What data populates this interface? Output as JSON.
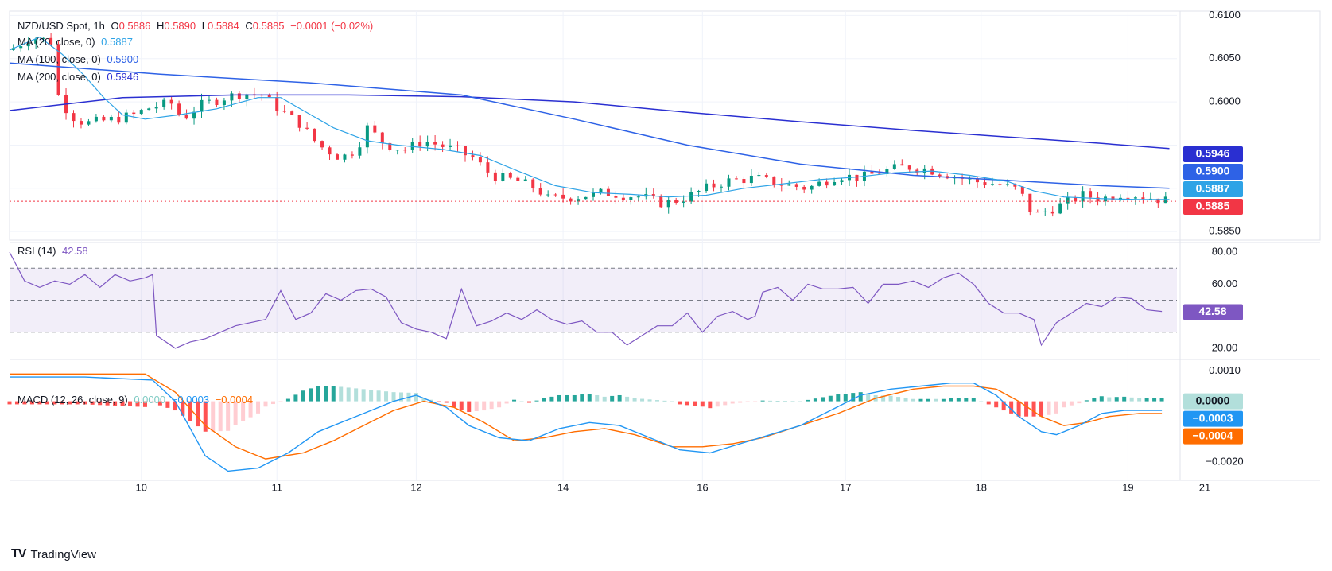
{
  "header": {
    "symbol": "NZD/USD Spot, 1h",
    "o_label": "O",
    "o_value": "0.5886",
    "h_label": "H",
    "h_value": "0.5890",
    "l_label": "L",
    "l_value": "0.5884",
    "c_label": "C",
    "c_value": "0.5885",
    "change": "−0.0001 (−0.02%)"
  },
  "indicators": {
    "ma20": {
      "label": "MA (20, close, 0)",
      "value": "0.5887",
      "color": "#2ea3e6"
    },
    "ma100": {
      "label": "MA (100, close, 0)",
      "value": "0.5900",
      "color": "#2e62e6"
    },
    "ma200": {
      "label": "MA (200, close, 0)",
      "value": "0.5946",
      "color": "#2a2fd1"
    },
    "rsi": {
      "label": "RSI (14)",
      "value": "42.58",
      "color": "#7e57c2"
    },
    "macd": {
      "label": "MACD (12, 26, close, 9)",
      "hist": "0.0000",
      "macd": "−0.0003",
      "signal": "−0.0004",
      "hist_color": "#26a69a",
      "macd_color": "#2196f3",
      "signal_color": "#ff6d00"
    }
  },
  "price_axis": [
    "0.6100",
    "0.6050",
    "0.6000",
    "0.5850"
  ],
  "rsi_axis": [
    "80.00",
    "60.00",
    "20.00"
  ],
  "macd_axis": [
    "0.0010",
    "−0.0020"
  ],
  "price_tags": [
    {
      "value": "0.5946",
      "bg": "#2a2fd1"
    },
    {
      "value": "0.5900",
      "bg": "#2e62e6"
    },
    {
      "value": "0.5887",
      "bg": "#2ea3e6"
    },
    {
      "value": "0.5885",
      "bg": "#f23645"
    }
  ],
  "rsi_tag": "42.58",
  "macd_tags": [
    {
      "value": "0.0000",
      "bg": "#b2dfdb",
      "fg": "#131722"
    },
    {
      "value": "−0.0003",
      "bg": "#2196f3",
      "fg": "#ffffff"
    },
    {
      "value": "−0.0004",
      "bg": "#ff6d00",
      "fg": "#ffffff"
    }
  ],
  "x_axis": [
    "10",
    "11",
    "12",
    "14",
    "16",
    "17",
    "18",
    "19",
    "21"
  ],
  "footer": {
    "brand": "TradingView"
  },
  "chart_data": {
    "type": "candlestick",
    "title": "NZD/USD Spot, 1h",
    "x_ticks": [
      "10",
      "11",
      "12",
      "14",
      "16",
      "17",
      "18",
      "19",
      "21"
    ],
    "ylim": [
      0.584,
      0.6105
    ],
    "series": [
      {
        "name": "MA (20, close, 0)",
        "last": 0.5887
      },
      {
        "name": "MA (100, close, 0)",
        "last": 0.59
      },
      {
        "name": "MA (200, close, 0)",
        "last": 0.5946
      }
    ],
    "close_path": [
      [
        0,
        0.606
      ],
      [
        6,
        0.6075
      ],
      [
        11,
        0.607
      ],
      [
        12,
        0.6015
      ],
      [
        16,
        0.5985
      ],
      [
        20,
        0.5975
      ],
      [
        28,
        0.598
      ],
      [
        33,
        0.5985
      ],
      [
        38,
        0.5995
      ],
      [
        43,
        0.5998
      ],
      [
        46,
        0.598
      ],
      [
        50,
        0.5995
      ],
      [
        57,
        0.6005
      ],
      [
        62,
        0.601
      ],
      [
        67,
        0.6008
      ],
      [
        72,
        0.599
      ],
      [
        77,
        0.5975
      ],
      [
        82,
        0.595
      ],
      [
        88,
        0.5935
      ],
      [
        92,
        0.5945
      ],
      [
        95,
        0.597
      ],
      [
        100,
        0.595
      ],
      [
        105,
        0.5945
      ],
      [
        110,
        0.5955
      ],
      [
        118,
        0.5945
      ],
      [
        123,
        0.5935
      ],
      [
        128,
        0.5915
      ],
      [
        135,
        0.5908
      ],
      [
        140,
        0.59
      ],
      [
        143,
        0.5888
      ],
      [
        150,
        0.589
      ],
      [
        158,
        0.5895
      ],
      [
        168,
        0.589
      ],
      [
        174,
        0.5882
      ],
      [
        180,
        0.589
      ],
      [
        185,
        0.59
      ],
      [
        190,
        0.5908
      ],
      [
        198,
        0.5912
      ],
      [
        205,
        0.5905
      ],
      [
        212,
        0.59
      ],
      [
        220,
        0.5915
      ],
      [
        226,
        0.5912
      ],
      [
        232,
        0.592
      ],
      [
        238,
        0.5925
      ],
      [
        244,
        0.5922
      ],
      [
        250,
        0.5915
      ],
      [
        256,
        0.5908
      ],
      [
        262,
        0.5905
      ],
      [
        268,
        0.5898
      ],
      [
        272,
        0.5868
      ],
      [
        276,
        0.5875
      ],
      [
        280,
        0.5882
      ],
      [
        285,
        0.5892
      ],
      [
        290,
        0.5888
      ],
      [
        296,
        0.5895
      ],
      [
        302,
        0.589
      ],
      [
        308,
        0.5885
      ]
    ],
    "ma20_path": [
      [
        0,
        0.606
      ],
      [
        8,
        0.6075
      ],
      [
        14,
        0.6055
      ],
      [
        20,
        0.603
      ],
      [
        25,
        0.6005
      ],
      [
        30,
        0.5985
      ],
      [
        36,
        0.598
      ],
      [
        45,
        0.5985
      ],
      [
        55,
        0.5992
      ],
      [
        66,
        0.6005
      ],
      [
        72,
        0.6005
      ],
      [
        78,
        0.599
      ],
      [
        86,
        0.597
      ],
      [
        95,
        0.5955
      ],
      [
        103,
        0.595
      ],
      [
        115,
        0.5945
      ],
      [
        125,
        0.5938
      ],
      [
        135,
        0.592
      ],
      [
        145,
        0.5903
      ],
      [
        155,
        0.5895
      ],
      [
        165,
        0.5893
      ],
      [
        175,
        0.589
      ],
      [
        185,
        0.5892
      ],
      [
        195,
        0.59
      ],
      [
        205,
        0.5905
      ],
      [
        215,
        0.591
      ],
      [
        225,
        0.5913
      ],
      [
        235,
        0.5918
      ],
      [
        245,
        0.592
      ],
      [
        255,
        0.5915
      ],
      [
        265,
        0.5908
      ],
      [
        272,
        0.5897
      ],
      [
        280,
        0.589
      ],
      [
        290,
        0.5888
      ],
      [
        300,
        0.5887
      ],
      [
        308,
        0.5887
      ]
    ],
    "ma100_path": [
      [
        0,
        0.6045
      ],
      [
        40,
        0.6032
      ],
      [
        80,
        0.6022
      ],
      [
        120,
        0.6008
      ],
      [
        150,
        0.598
      ],
      [
        180,
        0.595
      ],
      [
        210,
        0.5928
      ],
      [
        240,
        0.5915
      ],
      [
        270,
        0.5908
      ],
      [
        290,
        0.5903
      ],
      [
        308,
        0.59
      ]
    ],
    "ma200_path": [
      [
        0,
        0.599
      ],
      [
        30,
        0.6005
      ],
      [
        60,
        0.6008
      ],
      [
        90,
        0.6008
      ],
      [
        120,
        0.6006
      ],
      [
        150,
        0.6
      ],
      [
        180,
        0.5988
      ],
      [
        210,
        0.5977
      ],
      [
        240,
        0.5967
      ],
      [
        270,
        0.5958
      ],
      [
        290,
        0.5952
      ],
      [
        308,
        0.5946
      ]
    ]
  },
  "rsi_data": {
    "ylim": [
      15,
      85
    ],
    "bands": [
      70,
      50,
      30
    ],
    "path": [
      [
        0,
        80
      ],
      [
        4,
        62
      ],
      [
        8,
        58
      ],
      [
        12,
        62
      ],
      [
        16,
        60
      ],
      [
        20,
        66
      ],
      [
        24,
        58
      ],
      [
        28,
        66
      ],
      [
        32,
        62
      ],
      [
        36,
        64
      ],
      [
        38,
        66
      ],
      [
        39,
        28
      ],
      [
        44,
        20
      ],
      [
        48,
        24
      ],
      [
        52,
        26
      ],
      [
        56,
        30
      ],
      [
        60,
        34
      ],
      [
        64,
        36
      ],
      [
        68,
        38
      ],
      [
        72,
        56
      ],
      [
        76,
        38
      ],
      [
        80,
        42
      ],
      [
        84,
        54
      ],
      [
        88,
        50
      ],
      [
        92,
        56
      ],
      [
        96,
        57
      ],
      [
        100,
        52
      ],
      [
        104,
        36
      ],
      [
        108,
        32
      ],
      [
        112,
        30
      ],
      [
        116,
        26
      ],
      [
        120,
        57
      ],
      [
        124,
        34
      ],
      [
        128,
        37
      ],
      [
        132,
        42
      ],
      [
        136,
        38
      ],
      [
        140,
        44
      ],
      [
        144,
        38
      ],
      [
        148,
        35
      ],
      [
        152,
        37
      ],
      [
        156,
        30
      ],
      [
        160,
        30
      ],
      [
        164,
        22
      ],
      [
        168,
        28
      ],
      [
        172,
        34
      ],
      [
        176,
        34
      ],
      [
        180,
        42
      ],
      [
        184,
        30
      ],
      [
        188,
        40
      ],
      [
        192,
        43
      ],
      [
        196,
        38
      ],
      [
        198,
        40
      ],
      [
        200,
        55
      ],
      [
        204,
        58
      ],
      [
        208,
        50
      ],
      [
        212,
        60
      ],
      [
        216,
        57
      ],
      [
        220,
        57
      ],
      [
        224,
        58
      ],
      [
        228,
        48
      ],
      [
        232,
        60
      ],
      [
        236,
        60
      ],
      [
        240,
        62
      ],
      [
        244,
        58
      ],
      [
        248,
        64
      ],
      [
        252,
        67
      ],
      [
        256,
        60
      ],
      [
        260,
        48
      ],
      [
        264,
        42
      ],
      [
        268,
        42
      ],
      [
        272,
        38
      ],
      [
        274,
        22
      ],
      [
        278,
        36
      ],
      [
        282,
        42
      ],
      [
        286,
        48
      ],
      [
        290,
        46
      ],
      [
        294,
        52
      ],
      [
        298,
        51
      ],
      [
        302,
        44
      ],
      [
        306,
        43
      ]
    ]
  },
  "macd_data": {
    "ylim": [
      -0.0025,
      0.0013
    ],
    "macd_path": [
      [
        0,
        0.0008
      ],
      [
        20,
        0.0008
      ],
      [
        38,
        0.0007
      ],
      [
        44,
        0.0
      ],
      [
        52,
        -0.0018
      ],
      [
        58,
        -0.0023
      ],
      [
        66,
        -0.0022
      ],
      [
        74,
        -0.0017
      ],
      [
        82,
        -0.001
      ],
      [
        90,
        -0.0006
      ],
      [
        96,
        -0.0003
      ],
      [
        102,
        0.0
      ],
      [
        108,
        0.0002
      ],
      [
        116,
        -0.0002
      ],
      [
        122,
        -0.0008
      ],
      [
        130,
        -0.0012
      ],
      [
        138,
        -0.0013
      ],
      [
        146,
        -0.0009
      ],
      [
        154,
        -0.0007
      ],
      [
        162,
        -0.0008
      ],
      [
        170,
        -0.0012
      ],
      [
        178,
        -0.0016
      ],
      [
        186,
        -0.0017
      ],
      [
        194,
        -0.0014
      ],
      [
        202,
        -0.0011
      ],
      [
        210,
        -0.0008
      ],
      [
        218,
        -0.0003
      ],
      [
        226,
        0.0002
      ],
      [
        234,
        0.0004
      ],
      [
        242,
        0.0005
      ],
      [
        250,
        0.0006
      ],
      [
        256,
        0.0006
      ],
      [
        262,
        0.0002
      ],
      [
        268,
        -0.0005
      ],
      [
        274,
        -0.001
      ],
      [
        278,
        -0.0011
      ],
      [
        284,
        -0.0008
      ],
      [
        290,
        -0.0004
      ],
      [
        296,
        -0.0003
      ],
      [
        302,
        -0.0003
      ],
      [
        306,
        -0.0003
      ]
    ],
    "signal_path": [
      [
        0,
        0.0009
      ],
      [
        36,
        0.0009
      ],
      [
        44,
        0.0003
      ],
      [
        52,
        -0.0008
      ],
      [
        60,
        -0.0015
      ],
      [
        68,
        -0.0019
      ],
      [
        78,
        -0.0017
      ],
      [
        86,
        -0.0013
      ],
      [
        94,
        -0.0008
      ],
      [
        102,
        -0.0003
      ],
      [
        110,
        0.0
      ],
      [
        118,
        -0.0002
      ],
      [
        126,
        -0.0007
      ],
      [
        134,
        -0.0013
      ],
      [
        142,
        -0.0012
      ],
      [
        150,
        -0.001
      ],
      [
        158,
        -0.0009
      ],
      [
        166,
        -0.0011
      ],
      [
        176,
        -0.0015
      ],
      [
        184,
        -0.0015
      ],
      [
        192,
        -0.0014
      ],
      [
        200,
        -0.0012
      ],
      [
        210,
        -0.0008
      ],
      [
        220,
        -0.0004
      ],
      [
        230,
        0.0001
      ],
      [
        240,
        0.0004
      ],
      [
        248,
        0.0005
      ],
      [
        256,
        0.0005
      ],
      [
        262,
        0.0004
      ],
      [
        268,
        0.0
      ],
      [
        274,
        -0.0005
      ],
      [
        280,
        -0.0008
      ],
      [
        286,
        -0.0007
      ],
      [
        292,
        -0.0005
      ],
      [
        300,
        -0.0004
      ],
      [
        306,
        -0.0004
      ]
    ]
  }
}
